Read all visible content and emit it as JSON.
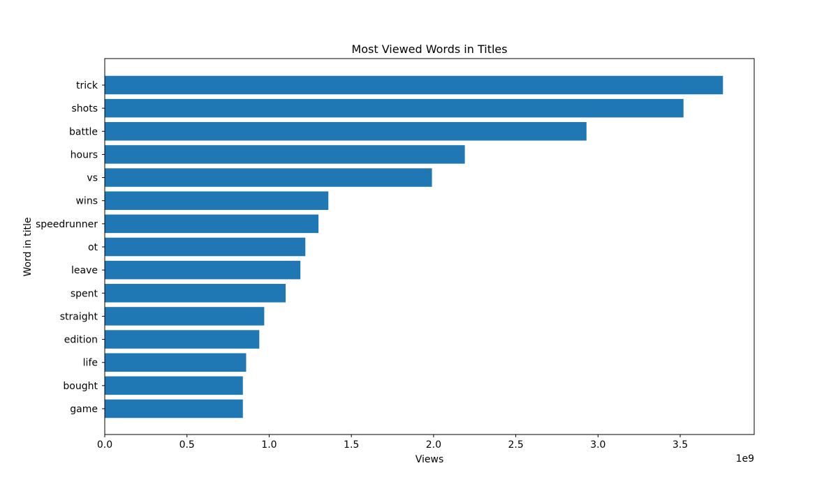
{
  "chart_data": {
    "type": "bar",
    "orientation": "horizontal",
    "title": "Most Viewed Words in Titles",
    "xlabel": "Views",
    "ylabel": "Word in title",
    "x_offset_text": "1e9",
    "x_scale_multiplier": 1000000000,
    "xlim": [
      0,
      3.95
    ],
    "xticks": [
      0.0,
      0.5,
      1.0,
      1.5,
      2.0,
      2.5,
      3.0,
      3.5
    ],
    "xtick_labels": [
      "0.0",
      "0.5",
      "1.0",
      "1.5",
      "2.0",
      "2.5",
      "3.0",
      "3.5"
    ],
    "categories": [
      "trick",
      "shots",
      "battle",
      "hours",
      "vs",
      "wins",
      "speedrunner",
      "ot",
      "leave",
      "spent",
      "straight",
      "edition",
      "life",
      "bought",
      "game"
    ],
    "values": [
      3.76,
      3.52,
      2.93,
      2.19,
      1.99,
      1.36,
      1.3,
      1.22,
      1.19,
      1.1,
      0.97,
      0.94,
      0.86,
      0.84,
      0.84
    ],
    "bar_color": "#1f77b4",
    "grid": false,
    "legend": false
  }
}
